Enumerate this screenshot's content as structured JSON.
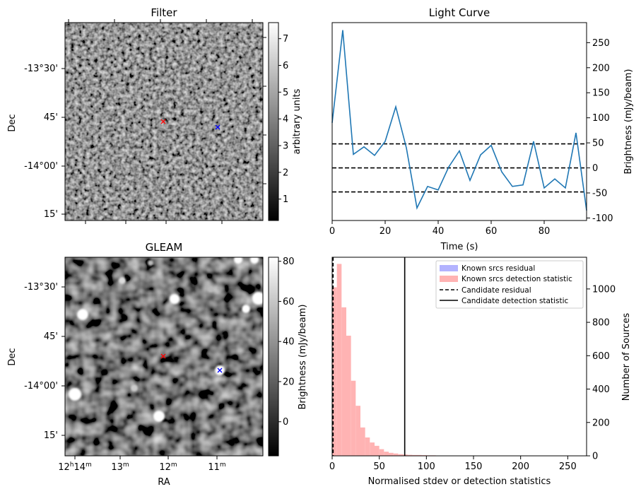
{
  "panels": {
    "filter": {
      "title": "Filter",
      "colorbar_label": "arbitrary units",
      "colorbar_ticks": [
        "1",
        "2",
        "3",
        "4",
        "5",
        "6",
        "7"
      ],
      "colorbar_range": [
        0.2,
        7.6
      ],
      "dec_tick_labels": [
        "-13°30'",
        "45'",
        "-14°00'",
        "15'"
      ],
      "ylabel": "Dec",
      "markers": [
        {
          "name": "candidate-red",
          "color": "#ff0000"
        },
        {
          "name": "candidate-blue",
          "color": "#0000ff"
        }
      ]
    },
    "gleam": {
      "title": "GLEAM",
      "colorbar_label": "Brightness (mJy/beam)",
      "colorbar_ticks": [
        "0",
        "20",
        "40",
        "60",
        "80"
      ],
      "colorbar_range": [
        -17,
        82
      ],
      "dec_tick_labels": [
        "-13°30'",
        "45'",
        "-14°00'",
        "15'"
      ],
      "ra_tick_labels": [
        {
          "main": "12",
          "h": "h",
          "min": "14",
          "m": "m"
        },
        {
          "main": "13",
          "m": "m"
        },
        {
          "main": "12",
          "m": "m"
        },
        {
          "main": "11",
          "m": "m"
        }
      ],
      "xlabel": "RA",
      "ylabel": "Dec"
    }
  },
  "chart_data": [
    {
      "type": "line",
      "title": "Light Curve",
      "xlabel": "Time (s)",
      "ylabel": "Brightness (mJy/beam)",
      "xlim": [
        0,
        96
      ],
      "ylim": [
        -105,
        290
      ],
      "x_ticks": [
        0,
        20,
        40,
        60,
        80
      ],
      "y_ticks": [
        -100,
        -50,
        0,
        50,
        100,
        150,
        200,
        250
      ],
      "series": [
        {
          "color": "#1f77b4",
          "x": [
            0,
            4,
            8,
            12,
            16,
            20,
            24,
            28,
            32,
            36,
            40,
            44,
            48,
            52,
            56,
            60,
            64,
            68,
            72,
            76,
            80,
            84,
            88,
            92,
            96
          ],
          "y": [
            90,
            275,
            27,
            42,
            25,
            53,
            122,
            40,
            -80,
            -37,
            -44,
            2,
            34,
            -25,
            26,
            45,
            -8,
            -37,
            -34,
            53,
            -40,
            -22,
            -40,
            70,
            -85
          ]
        }
      ],
      "hlines": [
        {
          "y": 48,
          "style": "dashed",
          "color": "#000000"
        },
        {
          "y": 0,
          "style": "dashed",
          "color": "#000000"
        },
        {
          "y": -48,
          "style": "dashed",
          "color": "#000000"
        }
      ]
    },
    {
      "type": "bar",
      "xlabel": "Normalised stdev or detection statistics",
      "ylabel": "Number of Sources",
      "xlim": [
        0,
        270
      ],
      "ylim": [
        0,
        1190
      ],
      "x_ticks": [
        0,
        50,
        100,
        150,
        200,
        250
      ],
      "y_ticks": [
        0,
        200,
        400,
        600,
        800,
        1000
      ],
      "bin_width": 5,
      "series": [
        {
          "name": "Known srcs residual",
          "color": "#b3b3ff",
          "bin_start": 0,
          "values": [
            0
          ]
        },
        {
          "name": "Known srcs detection statistic",
          "color": "#ffb3b3",
          "bin_start": 0,
          "values": [
            1010,
            1150,
            890,
            720,
            450,
            300,
            170,
            110,
            80,
            60,
            40,
            25,
            18,
            14,
            10,
            8,
            6,
            5,
            5,
            4,
            3,
            3,
            2,
            2,
            2,
            2,
            1,
            2,
            1,
            1,
            1,
            1,
            1,
            1,
            1,
            1,
            1,
            1,
            1,
            1,
            1,
            1,
            1,
            1,
            1,
            1,
            1,
            1,
            1,
            1,
            1,
            1,
            1,
            1
          ]
        }
      ],
      "vlines": [
        {
          "name": "Candidate residual",
          "x": 1,
          "style": "dashed",
          "color": "#000000"
        },
        {
          "name": "Candidate detection statistic",
          "x": 77,
          "style": "solid",
          "color": "#000000"
        }
      ]
    }
  ]
}
